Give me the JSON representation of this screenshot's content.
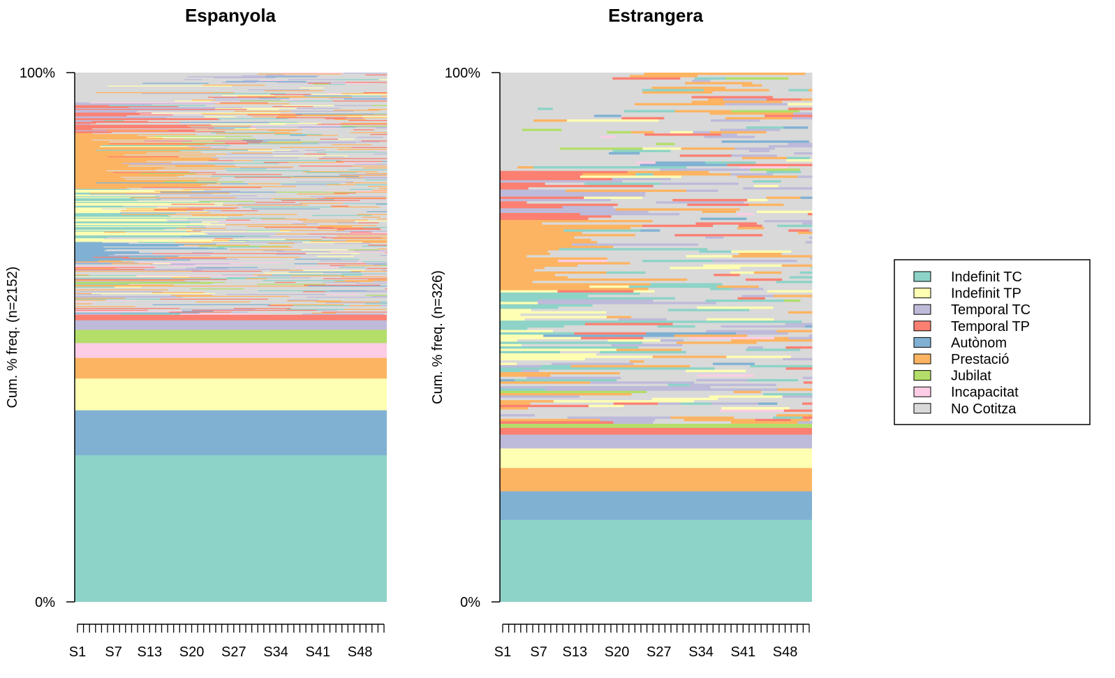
{
  "chart_data": [
    {
      "type": "area",
      "title": "Espanyola",
      "ylabel": "Cum. % freq. (n=2152)",
      "xlabel": "",
      "y_ticks": [
        "0%",
        "100%"
      ],
      "x_tick_labels": [
        "S1",
        "S7",
        "S13",
        "S20",
        "S27",
        "S34",
        "S41",
        "S48"
      ],
      "x_ticks_count": 52,
      "n": 2152,
      "stable_bands": [
        {
          "state": "Indefinit TC",
          "from": 0,
          "to": 27.7
        },
        {
          "state": "Autònom",
          "from": 27.7,
          "to": 36.2
        },
        {
          "state": "Indefinit TP",
          "from": 36.2,
          "to": 42.2
        },
        {
          "state": "Prestació",
          "from": 42.2,
          "to": 46.1
        },
        {
          "state": "Incapacitat",
          "from": 46.1,
          "to": 48.9
        },
        {
          "state": "Jubilat",
          "from": 48.9,
          "to": 51.4
        },
        {
          "state": "Temporal TC",
          "from": 51.4,
          "to": 53.2
        },
        {
          "state": "Temporal TP",
          "from": 53.2,
          "to": 54.3
        }
      ]
    },
    {
      "type": "area",
      "title": "Estrangera",
      "ylabel": "Cum. % freq. (n=326)",
      "xlabel": "",
      "y_ticks": [
        "0%",
        "100%"
      ],
      "x_tick_labels": [
        "S1",
        "S7",
        "S13",
        "S20",
        "S27",
        "S34",
        "S41",
        "S48"
      ],
      "x_ticks_count": 52,
      "n": 326,
      "stable_bands": [
        {
          "state": "Indefinit TC",
          "from": 0,
          "to": 15.5
        },
        {
          "state": "Autònom",
          "from": 15.5,
          "to": 20.9
        },
        {
          "state": "Prestació",
          "from": 20.9,
          "to": 25.3
        },
        {
          "state": "Indefinit TP",
          "from": 25.3,
          "to": 29.0
        },
        {
          "state": "Temporal TC",
          "from": 29.0,
          "to": 31.6
        },
        {
          "state": "Temporal TP",
          "from": 31.6,
          "to": 32.9
        },
        {
          "state": "Jubilat",
          "from": 32.9,
          "to": 33.7
        }
      ]
    }
  ],
  "legend": {
    "placement": "right",
    "items": [
      {
        "label": "Indefinit TC",
        "color": "#8dd3c7"
      },
      {
        "label": "Indefinit TP",
        "color": "#ffffb3"
      },
      {
        "label": "Temporal TC",
        "color": "#bebada"
      },
      {
        "label": "Temporal TP",
        "color": "#fb8072"
      },
      {
        "label": "Autònom",
        "color": "#80b1d3"
      },
      {
        "label": "Prestació",
        "color": "#fdb462"
      },
      {
        "label": "Jubilat",
        "color": "#b3de69"
      },
      {
        "label": "Incapacitat",
        "color": "#fccde5"
      },
      {
        "label": "No Cotitza",
        "color": "#d9d9d9"
      }
    ]
  }
}
